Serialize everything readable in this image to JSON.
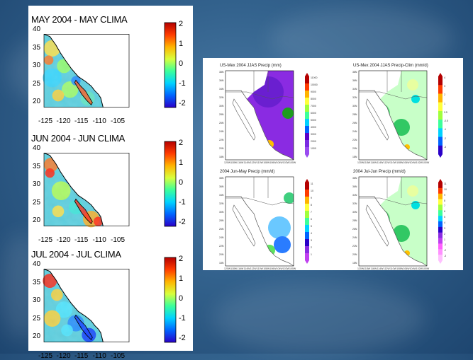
{
  "left_figure": {
    "panels": [
      {
        "title": "MAY 2004 - MAY CLIMA"
      },
      {
        "title": "JUN 2004 - JUN CLIMA"
      },
      {
        "title": "JUL 2004 - JUL CLIMA"
      }
    ],
    "y_ticks": [
      "40",
      "35",
      "30",
      "25",
      "20"
    ],
    "x_ticks": [
      "-125",
      "-120",
      "-115",
      "-110",
      "-105"
    ],
    "colorbar_ticks": [
      "2",
      "1",
      "0",
      "-1",
      "-2"
    ],
    "colorbar_colors": [
      "#2a00c8",
      "#0064ff",
      "#00d2ff",
      "#3cff9a",
      "#d8ff3c",
      "#ffb400",
      "#ff3c00",
      "#b40000"
    ]
  },
  "right_figure": {
    "panels": [
      {
        "title": "US-Mex 2004 JJAS Precip (mm)",
        "style": "purple",
        "cb_ticks": [
          "11000",
          "10000",
          "9000",
          "8000",
          "7000",
          "6000",
          "5000",
          "4000",
          "3000",
          "2000",
          "1000"
        ]
      },
      {
        "title": "US-Mex 2004 JJAS Precip-Clim (mm/d)",
        "style": "green",
        "cb_ticks": [
          "4",
          "3",
          "2",
          "1",
          "0.5",
          "-0.5",
          "-1",
          "-2",
          "-3"
        ]
      },
      {
        "title": "2004 Jun-May Precip (mm/d)",
        "style": "blue",
        "cb_ticks": [
          "11",
          "10",
          "9",
          "8",
          "7",
          "6",
          "5",
          "4",
          "3",
          "2",
          "1"
        ]
      },
      {
        "title": "2004 Jul-Jun Precip (mm/d)",
        "style": "green",
        "cb_ticks": [
          "11",
          "10",
          "9",
          "8",
          "7",
          "6",
          "5",
          "4",
          "3",
          "2",
          "1",
          "-1",
          "-2",
          "-3"
        ]
      }
    ],
    "lat_ticks": [
      "38N",
      "36N",
      "34N",
      "32N",
      "30N",
      "28N",
      "26N",
      "24N",
      "22N",
      "20N",
      "18N"
    ],
    "lon_ticks": [
      "120W",
      "118W",
      "116W",
      "114W",
      "112W",
      "110W",
      "108W",
      "106W",
      "104W",
      "102W",
      "100W"
    ]
  }
}
